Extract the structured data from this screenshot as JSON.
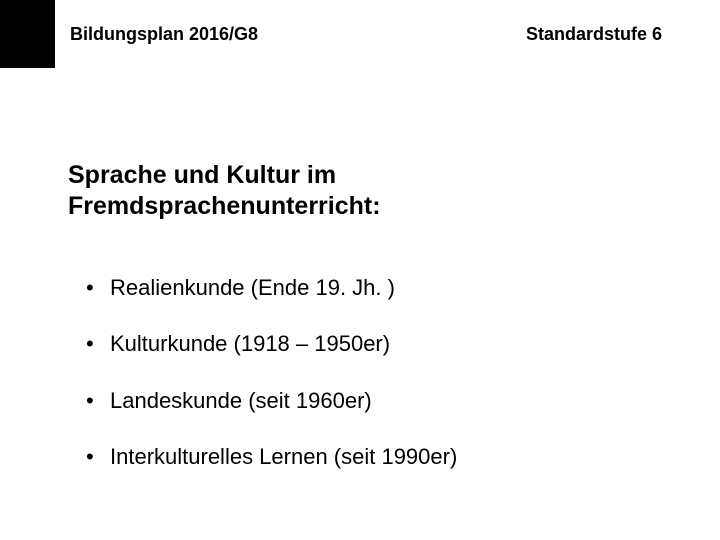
{
  "slide": {
    "header_block_color": "#000000",
    "background_color": "#ffffff",
    "text_color": "#000000",
    "header": {
      "left": "Bildungsplan 2016/G8",
      "right": "Standardstufe 6",
      "fontsize_pt": 18,
      "font_weight": "bold"
    },
    "title": {
      "line1": "Sprache und Kultur im",
      "line2": "Fremdsprachenunterricht:",
      "fontsize_pt": 25,
      "font_weight": "bold"
    },
    "bullets": {
      "marker": "•",
      "fontsize_pt": 22,
      "items": [
        {
          "text": "Realienkunde (Ende 19. Jh. )"
        },
        {
          "text": "Kulturkunde (1918 – 1950er)"
        },
        {
          "text": "Landeskunde (seit 1960er)"
        },
        {
          "text": "Interkulturelles Lernen (seit 1990er)"
        }
      ]
    }
  }
}
